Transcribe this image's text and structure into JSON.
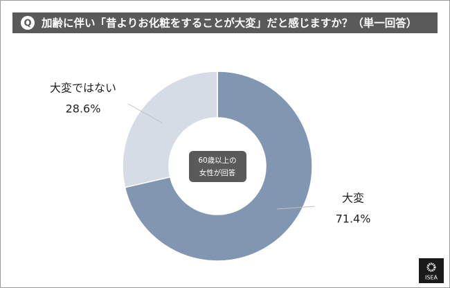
{
  "chart_data": {
    "type": "donut",
    "badge": "Q",
    "title": "加齢に伴い「昔よりお化粧をすることが大変」だと感じますか？（単一回答）",
    "center_label": [
      "60歳以上の",
      "女性が回答"
    ],
    "categories": [
      "大変",
      "大変ではない"
    ],
    "values": [
      71.4,
      28.6
    ],
    "value_labels": [
      "71.4%",
      "28.6%"
    ],
    "colors": [
      "#8196b0",
      "#d6dce6"
    ],
    "logo": "ISEA"
  }
}
